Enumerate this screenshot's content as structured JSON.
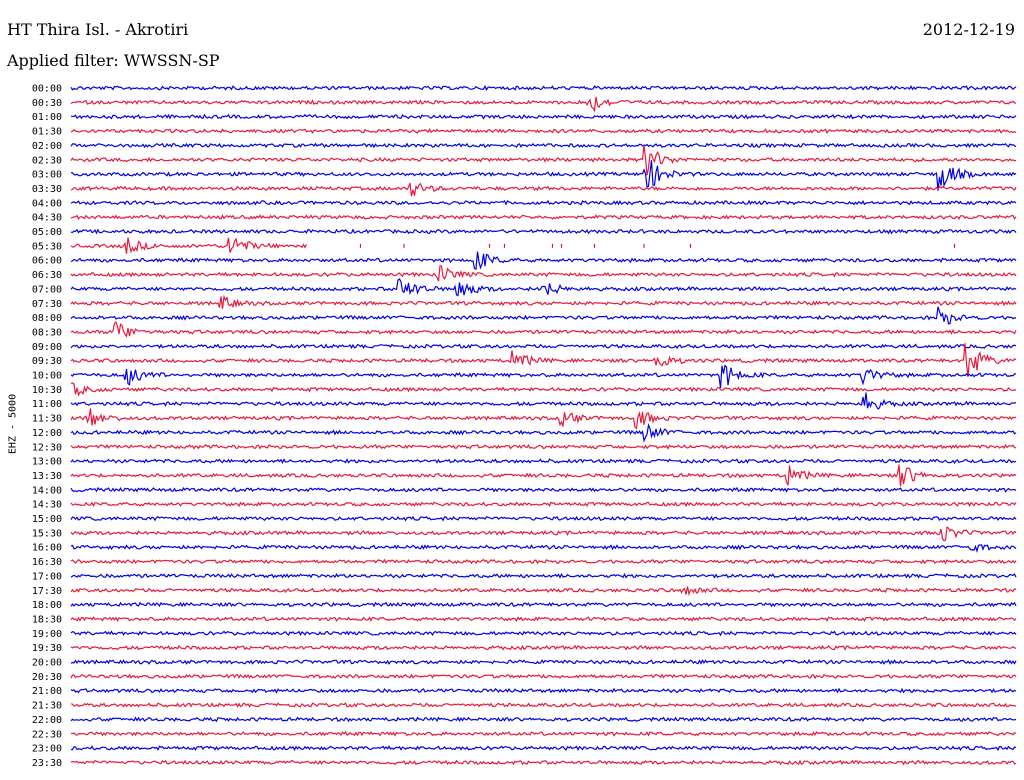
{
  "header": {
    "station": "HT Thira Isl. - Akrotiri",
    "date": "2012-12-19",
    "filter": "Applied filter: WWSSN-SP"
  },
  "chart_data": {
    "type": "line",
    "title": "HT Thira Isl. - Akrotiri",
    "ylabel": "EHZ - 5000",
    "colors": [
      "#0000e6",
      "#e6193c"
    ],
    "rows": [
      "00:00",
      "00:30",
      "01:00",
      "01:30",
      "02:00",
      "02:30",
      "03:00",
      "03:30",
      "04:00",
      "04:30",
      "05:00",
      "05:30",
      "06:00",
      "06:30",
      "07:00",
      "07:30",
      "08:00",
      "08:30",
      "09:00",
      "09:30",
      "10:00",
      "10:30",
      "11:00",
      "11:30",
      "12:00",
      "12:30",
      "13:00",
      "13:30",
      "14:00",
      "14:30",
      "15:00",
      "15:30",
      "16:00",
      "16:30",
      "17:00",
      "17:30",
      "18:00",
      "18:30",
      "19:00",
      "19:30",
      "20:00",
      "20:30",
      "21:00",
      "21:30",
      "22:00",
      "22:30",
      "23:00",
      "23:30"
    ],
    "events": [
      {
        "row": "00:30",
        "at": 0.55,
        "amp": 1.0
      },
      {
        "row": "02:30",
        "at": 0.61,
        "amp": 1.5
      },
      {
        "row": "03:00",
        "at": 0.61,
        "amp": 1.8
      },
      {
        "row": "03:00",
        "at": 0.92,
        "amp": 1.8
      },
      {
        "row": "03:30",
        "at": 0.36,
        "amp": 0.8
      },
      {
        "row": "05:30",
        "at": 0.06,
        "amp": 0.8
      },
      {
        "row": "05:30",
        "at": 0.17,
        "amp": 1.2
      },
      {
        "row": "06:00",
        "at": 0.43,
        "amp": 1.0
      },
      {
        "row": "06:30",
        "at": 0.39,
        "amp": 0.9
      },
      {
        "row": "07:00",
        "at": 0.35,
        "amp": 1.3
      },
      {
        "row": "07:00",
        "at": 0.41,
        "amp": 1.0
      },
      {
        "row": "07:00",
        "at": 0.5,
        "amp": 0.9
      },
      {
        "row": "07:30",
        "at": 0.16,
        "amp": 0.6
      },
      {
        "row": "08:00",
        "at": 0.92,
        "amp": 1.0
      },
      {
        "row": "08:30",
        "at": 0.05,
        "amp": 0.9
      },
      {
        "row": "09:30",
        "at": 0.47,
        "amp": 0.9
      },
      {
        "row": "09:30",
        "at": 0.62,
        "amp": 0.9
      },
      {
        "row": "09:30",
        "at": 0.95,
        "amp": 1.8
      },
      {
        "row": "10:00",
        "at": 0.06,
        "amp": 1.0
      },
      {
        "row": "10:00",
        "at": 0.69,
        "amp": 1.3
      },
      {
        "row": "10:00",
        "at": 0.84,
        "amp": 0.8
      },
      {
        "row": "10:30",
        "at": 0.0,
        "amp": 0.8
      },
      {
        "row": "11:00",
        "at": 0.84,
        "amp": 1.1
      },
      {
        "row": "11:30",
        "at": 0.02,
        "amp": 1.0
      },
      {
        "row": "11:30",
        "at": 0.52,
        "amp": 0.8
      },
      {
        "row": "11:30",
        "at": 0.6,
        "amp": 0.9
      },
      {
        "row": "12:00",
        "at": 0.61,
        "amp": 0.8
      },
      {
        "row": "13:30",
        "at": 0.76,
        "amp": 0.9
      },
      {
        "row": "13:30",
        "at": 0.88,
        "amp": 1.1
      },
      {
        "row": "15:30",
        "at": 0.92,
        "amp": 1.0
      },
      {
        "row": "16:00",
        "at": 0.95,
        "amp": 0.5
      },
      {
        "row": "17:30",
        "at": 0.65,
        "amp": 0.4
      }
    ],
    "gap": {
      "row": "05:30",
      "from": 0.25,
      "to": 1.0
    }
  }
}
